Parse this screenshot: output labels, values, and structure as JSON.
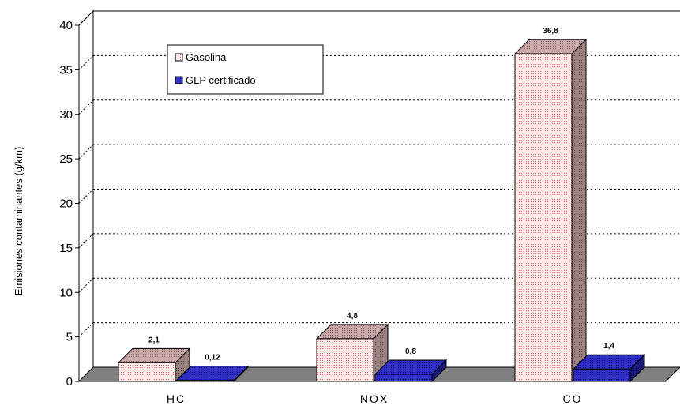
{
  "chart_data": {
    "type": "bar",
    "categories": [
      "HC",
      "NOX",
      "CO"
    ],
    "series": [
      {
        "name": "Gasolina",
        "values": [
          2.1,
          4.8,
          36.8
        ],
        "labels": [
          "2,1",
          "4,8",
          "36,8"
        ]
      },
      {
        "name": "GLP certificado",
        "values": [
          0.12,
          0.8,
          1.4
        ],
        "labels": [
          "0,12",
          "0,8",
          "1,4"
        ]
      }
    ],
    "xlabel": "",
    "ylabel": "Emisiones contaminantes (g/km)",
    "ylim": [
      0,
      40
    ],
    "yticks": [
      "0",
      "5",
      "10",
      "15",
      "20",
      "25",
      "30",
      "35",
      "40"
    ],
    "grid": true,
    "legend": "top-left",
    "colors": {
      "gasolina_front": "#ffe0e0",
      "gasolina_side": "#a89090",
      "glp_front": "#3333cc",
      "glp_side": "#1a1a80",
      "floor": "#808080"
    }
  }
}
